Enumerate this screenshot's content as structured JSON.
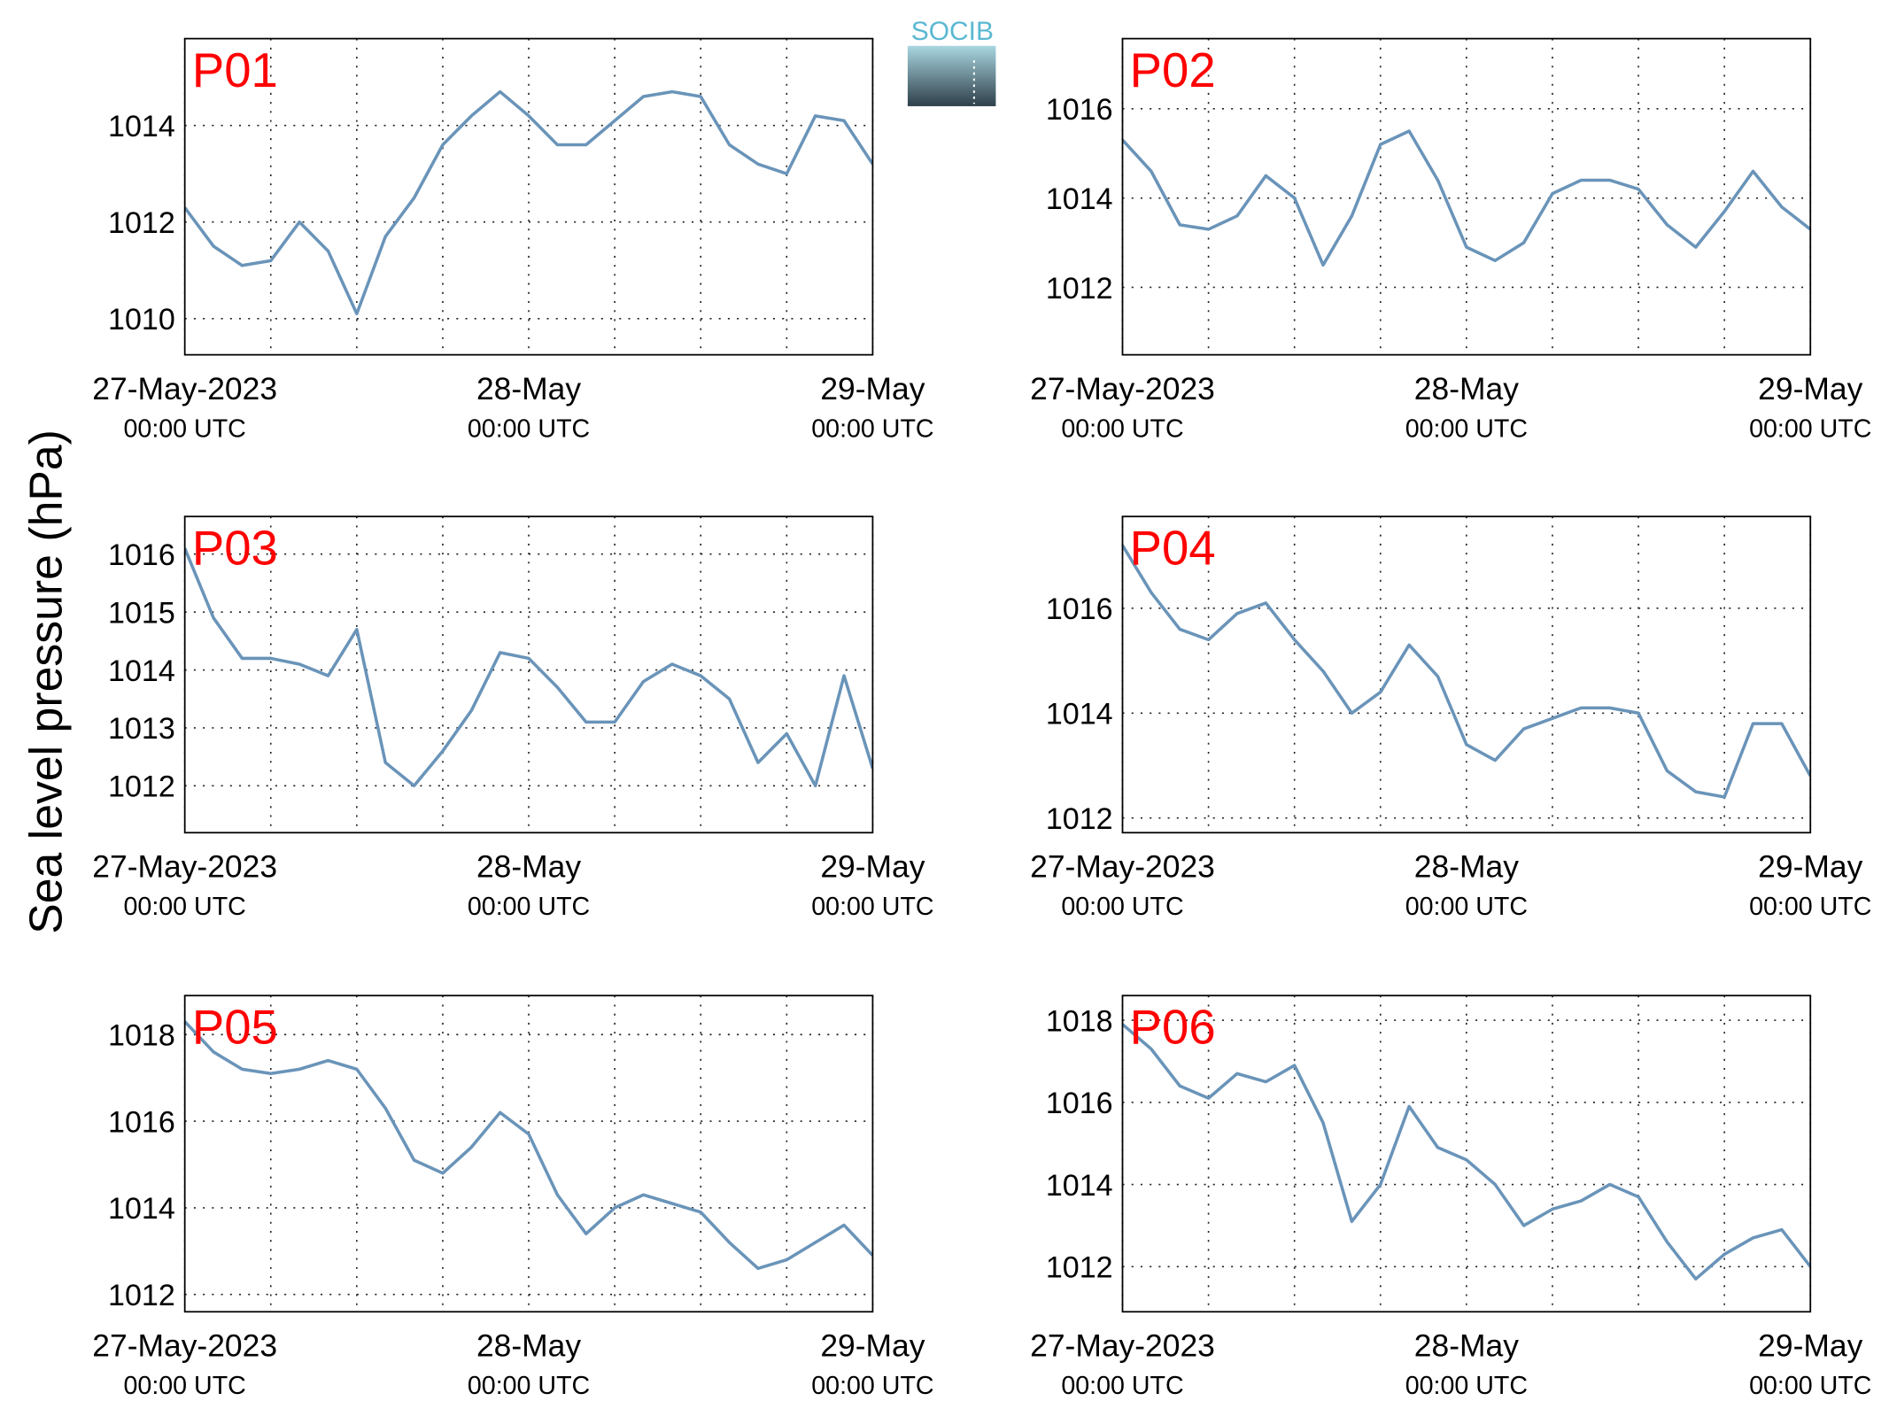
{
  "ylabel": "Sea level pressure (hPa)",
  "logo": "SOCIB",
  "chart_data": [
    {
      "type": "line",
      "title": "P01",
      "color": "#6a94b9",
      "x": [
        "2023-05-27T00:00",
        "2023-05-27T02:00",
        "2023-05-27T04:00",
        "2023-05-27T06:00",
        "2023-05-27T08:00",
        "2023-05-27T10:00",
        "2023-05-27T12:00",
        "2023-05-27T14:00",
        "2023-05-27T16:00",
        "2023-05-27T18:00",
        "2023-05-27T20:00",
        "2023-05-27T22:00",
        "2023-05-28T00:00",
        "2023-05-28T02:00",
        "2023-05-28T04:00",
        "2023-05-28T06:00",
        "2023-05-28T08:00",
        "2023-05-28T10:00",
        "2023-05-28T12:00",
        "2023-05-28T14:00",
        "2023-05-28T16:00",
        "2023-05-28T18:00",
        "2023-05-28T20:00",
        "2023-05-28T22:00",
        "2023-05-29T00:00"
      ],
      "values": [
        1012.3,
        1011.5,
        1011.1,
        1011.2,
        1012.0,
        1011.4,
        1010.1,
        1011.7,
        1012.5,
        1013.6,
        1014.2,
        1014.7,
        1014.2,
        1013.6,
        1013.6,
        1014.1,
        1014.6,
        1014.7,
        1014.6,
        1013.6,
        1013.2,
        1013.0,
        1014.2,
        1014.1,
        1013.2
      ],
      "xlim": [
        "2023-05-27T00:00",
        "2023-05-29T00:00"
      ],
      "xticks": [
        {
          "value": "2023-05-27T00:00",
          "label": "27-May-2023",
          "sublabel": "00:00 UTC"
        },
        "2023-05-27T06:00",
        "2023-05-27T12:00",
        "2023-05-27T18:00",
        {
          "value": "2023-05-28T00:00",
          "label": "28-May",
          "sublabel": "00:00 UTC"
        },
        "2023-05-28T06:00",
        "2023-05-28T12:00",
        "2023-05-28T18:00",
        {
          "value": "2023-05-29T00:00",
          "label": "29-May",
          "sublabel": "00:00 UTC"
        }
      ],
      "ylim": [
        1009.25,
        1015.8
      ],
      "yticks": [
        1010,
        1012,
        1014
      ],
      "grid": true
    },
    {
      "type": "line",
      "title": "P02",
      "color": "#6a94b9",
      "x": [
        "2023-05-27T00:00",
        "2023-05-27T02:00",
        "2023-05-27T04:00",
        "2023-05-27T06:00",
        "2023-05-27T08:00",
        "2023-05-27T10:00",
        "2023-05-27T12:00",
        "2023-05-27T14:00",
        "2023-05-27T16:00",
        "2023-05-27T18:00",
        "2023-05-27T20:00",
        "2023-05-27T22:00",
        "2023-05-28T00:00",
        "2023-05-28T02:00",
        "2023-05-28T04:00",
        "2023-05-28T06:00",
        "2023-05-28T08:00",
        "2023-05-28T10:00",
        "2023-05-28T12:00",
        "2023-05-28T14:00",
        "2023-05-28T16:00",
        "2023-05-28T18:00",
        "2023-05-28T20:00",
        "2023-05-28T22:00",
        "2023-05-29T00:00"
      ],
      "values": [
        1015.3,
        1014.6,
        1013.4,
        1013.3,
        1013.6,
        1014.5,
        1014.0,
        1012.5,
        1013.6,
        1015.2,
        1015.5,
        1014.4,
        1012.9,
        1012.6,
        1013.0,
        1014.1,
        1014.4,
        1014.4,
        1014.2,
        1013.4,
        1012.9,
        1013.7,
        1014.6,
        1013.8,
        1013.3
      ],
      "xlim": [
        "2023-05-27T00:00",
        "2023-05-29T00:00"
      ],
      "xticks": [
        {
          "value": "2023-05-27T00:00",
          "label": "27-May-2023",
          "sublabel": "00:00 UTC"
        },
        "2023-05-27T06:00",
        "2023-05-27T12:00",
        "2023-05-27T18:00",
        {
          "value": "2023-05-28T00:00",
          "label": "28-May",
          "sublabel": "00:00 UTC"
        },
        "2023-05-28T06:00",
        "2023-05-28T12:00",
        "2023-05-28T18:00",
        {
          "value": "2023-05-29T00:00",
          "label": "29-May",
          "sublabel": "00:00 UTC"
        }
      ],
      "ylim": [
        1010.49,
        1017.57
      ],
      "yticks": [
        1012,
        1014,
        1016
      ],
      "grid": true
    },
    {
      "type": "line",
      "title": "P03",
      "color": "#6a94b9",
      "x": [
        "2023-05-27T00:00",
        "2023-05-27T02:00",
        "2023-05-27T04:00",
        "2023-05-27T06:00",
        "2023-05-27T08:00",
        "2023-05-27T10:00",
        "2023-05-27T12:00",
        "2023-05-27T14:00",
        "2023-05-27T16:00",
        "2023-05-27T18:00",
        "2023-05-27T20:00",
        "2023-05-27T22:00",
        "2023-05-28T00:00",
        "2023-05-28T02:00",
        "2023-05-28T04:00",
        "2023-05-28T06:00",
        "2023-05-28T08:00",
        "2023-05-28T10:00",
        "2023-05-28T12:00",
        "2023-05-28T14:00",
        "2023-05-28T16:00",
        "2023-05-28T18:00",
        "2023-05-28T20:00",
        "2023-05-28T22:00",
        "2023-05-29T00:00"
      ],
      "values": [
        1016.1,
        1014.9,
        1014.2,
        1014.2,
        1014.1,
        1013.9,
        1014.7,
        1012.4,
        1012.0,
        1012.6,
        1013.3,
        1014.3,
        1014.2,
        1013.7,
        1013.1,
        1013.1,
        1013.8,
        1014.1,
        1013.9,
        1013.5,
        1012.4,
        1012.9,
        1012.0,
        1013.9,
        1012.3
      ],
      "xlim": [
        "2023-05-27T00:00",
        "2023-05-29T00:00"
      ],
      "xticks": [
        {
          "value": "2023-05-27T00:00",
          "label": "27-May-2023",
          "sublabel": "00:00 UTC"
        },
        "2023-05-27T06:00",
        "2023-05-27T12:00",
        "2023-05-27T18:00",
        {
          "value": "2023-05-28T00:00",
          "label": "28-May",
          "sublabel": "00:00 UTC"
        },
        "2023-05-28T06:00",
        "2023-05-28T12:00",
        "2023-05-28T18:00",
        {
          "value": "2023-05-29T00:00",
          "label": "29-May",
          "sublabel": "00:00 UTC"
        }
      ],
      "ylim": [
        1011.19,
        1016.65
      ],
      "yticks": [
        1012,
        1013,
        1014,
        1015,
        1016
      ],
      "grid": true
    },
    {
      "type": "line",
      "title": "P04",
      "color": "#6a94b9",
      "x": [
        "2023-05-27T00:00",
        "2023-05-27T02:00",
        "2023-05-27T04:00",
        "2023-05-27T06:00",
        "2023-05-27T08:00",
        "2023-05-27T10:00",
        "2023-05-27T12:00",
        "2023-05-27T14:00",
        "2023-05-27T16:00",
        "2023-05-27T18:00",
        "2023-05-27T20:00",
        "2023-05-27T22:00",
        "2023-05-28T00:00",
        "2023-05-28T02:00",
        "2023-05-28T04:00",
        "2023-05-28T06:00",
        "2023-05-28T08:00",
        "2023-05-28T10:00",
        "2023-05-28T12:00",
        "2023-05-28T14:00",
        "2023-05-28T16:00",
        "2023-05-28T18:00",
        "2023-05-28T20:00",
        "2023-05-28T22:00",
        "2023-05-29T00:00"
      ],
      "values": [
        1017.2,
        1016.3,
        1015.6,
        1015.4,
        1015.9,
        1016.1,
        1015.4,
        1014.8,
        1014.0,
        1014.4,
        1015.3,
        1014.7,
        1013.4,
        1013.1,
        1013.7,
        1013.9,
        1014.1,
        1014.1,
        1014.0,
        1012.9,
        1012.5,
        1012.4,
        1013.8,
        1013.8,
        1012.8
      ],
      "xlim": [
        "2023-05-27T00:00",
        "2023-05-29T00:00"
      ],
      "xticks": [
        {
          "value": "2023-05-27T00:00",
          "label": "27-May-2023",
          "sublabel": "00:00 UTC"
        },
        "2023-05-27T06:00",
        "2023-05-27T12:00",
        "2023-05-27T18:00",
        {
          "value": "2023-05-28T00:00",
          "label": "28-May",
          "sublabel": "00:00 UTC"
        },
        "2023-05-28T06:00",
        "2023-05-28T12:00",
        "2023-05-28T18:00",
        {
          "value": "2023-05-29T00:00",
          "label": "29-May",
          "sublabel": "00:00 UTC"
        }
      ],
      "ylim": [
        1011.72,
        1017.75
      ],
      "yticks": [
        1012,
        1014,
        1016
      ],
      "grid": true
    },
    {
      "type": "line",
      "title": "P05",
      "color": "#6a94b9",
      "x": [
        "2023-05-27T00:00",
        "2023-05-27T02:00",
        "2023-05-27T04:00",
        "2023-05-27T06:00",
        "2023-05-27T08:00",
        "2023-05-27T10:00",
        "2023-05-27T12:00",
        "2023-05-27T14:00",
        "2023-05-27T16:00",
        "2023-05-27T18:00",
        "2023-05-27T20:00",
        "2023-05-27T22:00",
        "2023-05-28T00:00",
        "2023-05-28T02:00",
        "2023-05-28T04:00",
        "2023-05-28T06:00",
        "2023-05-28T08:00",
        "2023-05-28T10:00",
        "2023-05-28T12:00",
        "2023-05-28T14:00",
        "2023-05-28T16:00",
        "2023-05-28T18:00",
        "2023-05-28T20:00",
        "2023-05-28T22:00",
        "2023-05-29T00:00"
      ],
      "values": [
        1018.3,
        1017.6,
        1017.2,
        1017.1,
        1017.2,
        1017.4,
        1017.2,
        1016.3,
        1015.1,
        1014.8,
        1015.4,
        1016.2,
        1015.7,
        1014.3,
        1013.4,
        1014.0,
        1014.3,
        1014.1,
        1013.9,
        1013.2,
        1012.6,
        1012.8,
        1013.2,
        1013.6,
        1012.9
      ],
      "xlim": [
        "2023-05-27T00:00",
        "2023-05-29T00:00"
      ],
      "xticks": [
        {
          "value": "2023-05-27T00:00",
          "label": "27-May-2023",
          "sublabel": "00:00 UTC"
        },
        "2023-05-27T06:00",
        "2023-05-27T12:00",
        "2023-05-27T18:00",
        {
          "value": "2023-05-28T00:00",
          "label": "28-May",
          "sublabel": "00:00 UTC"
        },
        "2023-05-28T06:00",
        "2023-05-28T12:00",
        "2023-05-28T18:00",
        {
          "value": "2023-05-29T00:00",
          "label": "29-May",
          "sublabel": "00:00 UTC"
        }
      ],
      "ylim": [
        1011.6,
        1018.9
      ],
      "yticks": [
        1012,
        1014,
        1016,
        1018
      ],
      "grid": true
    },
    {
      "type": "line",
      "title": "P06",
      "color": "#6a94b9",
      "x": [
        "2023-05-27T00:00",
        "2023-05-27T02:00",
        "2023-05-27T04:00",
        "2023-05-27T06:00",
        "2023-05-27T08:00",
        "2023-05-27T10:00",
        "2023-05-27T12:00",
        "2023-05-27T14:00",
        "2023-05-27T16:00",
        "2023-05-27T18:00",
        "2023-05-27T20:00",
        "2023-05-27T22:00",
        "2023-05-28T00:00",
        "2023-05-28T02:00",
        "2023-05-28T04:00",
        "2023-05-28T06:00",
        "2023-05-28T08:00",
        "2023-05-28T10:00",
        "2023-05-28T12:00",
        "2023-05-28T14:00",
        "2023-05-28T16:00",
        "2023-05-28T18:00",
        "2023-05-28T20:00",
        "2023-05-28T22:00",
        "2023-05-29T00:00"
      ],
      "values": [
        1017.9,
        1017.3,
        1016.4,
        1016.1,
        1016.7,
        1016.5,
        1016.9,
        1015.5,
        1013.1,
        1014.0,
        1015.9,
        1014.9,
        1014.6,
        1014.0,
        1013.0,
        1013.4,
        1013.6,
        1014.0,
        1013.7,
        1012.6,
        1011.7,
        1012.3,
        1012.7,
        1012.9,
        1012.0
      ],
      "xlim": [
        "2023-05-27T00:00",
        "2023-05-29T00:00"
      ],
      "xticks": [
        {
          "value": "2023-05-27T00:00",
          "label": "27-May-2023",
          "sublabel": "00:00 UTC"
        },
        "2023-05-27T06:00",
        "2023-05-27T12:00",
        "2023-05-27T18:00",
        {
          "value": "2023-05-28T00:00",
          "label": "28-May",
          "sublabel": "00:00 UTC"
        },
        "2023-05-28T06:00",
        "2023-05-28T12:00",
        "2023-05-28T18:00",
        {
          "value": "2023-05-29T00:00",
          "label": "29-May",
          "sublabel": "00:00 UTC"
        }
      ],
      "ylim": [
        1010.9,
        1018.6
      ],
      "yticks": [
        1012,
        1014,
        1016,
        1018
      ],
      "grid": true
    }
  ]
}
